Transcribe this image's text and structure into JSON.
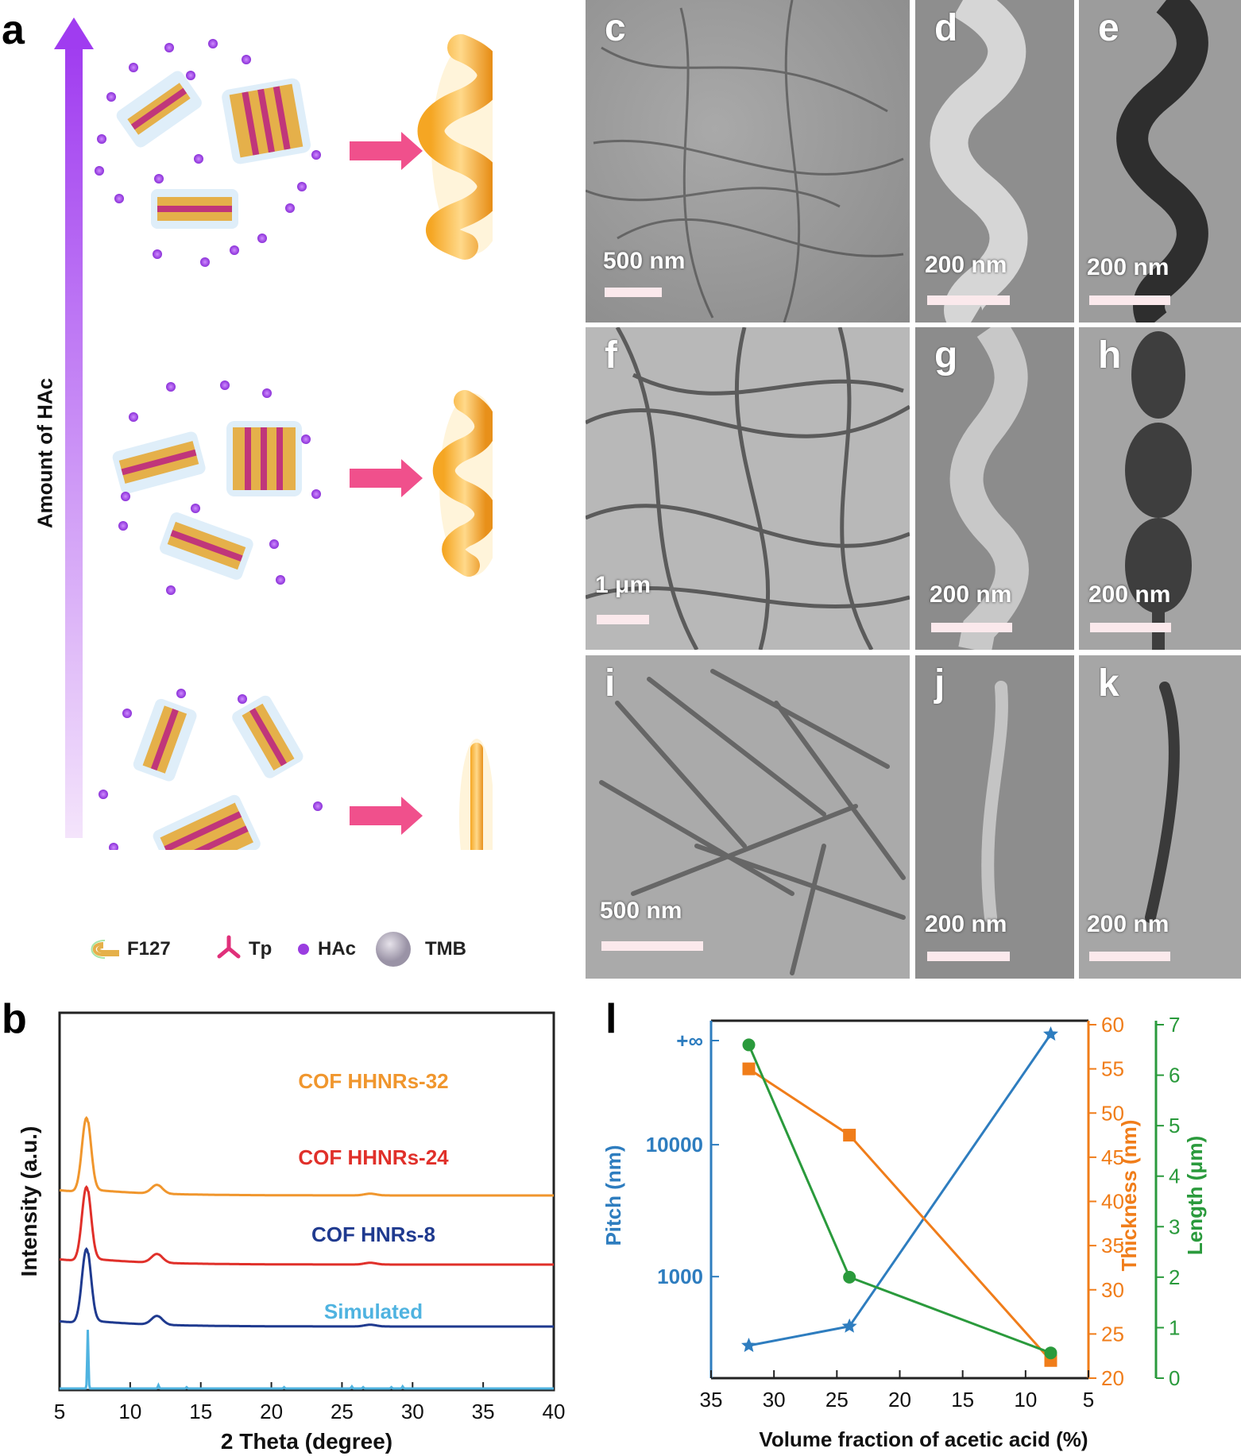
{
  "panel_a": {
    "letter": "a",
    "axis_label": "Amount of HAc",
    "legend": [
      {
        "label": "F127"
      },
      {
        "label": "Tp"
      },
      {
        "label": "HAc"
      },
      {
        "label": "TMB"
      }
    ]
  },
  "tem_panels": [
    {
      "letter": "c",
      "scale": "500 nm"
    },
    {
      "letter": "d",
      "scale": "200 nm"
    },
    {
      "letter": "e",
      "scale": "200 nm"
    },
    {
      "letter": "f",
      "scale": "1 μm"
    },
    {
      "letter": "g",
      "scale": "200 nm"
    },
    {
      "letter": "h",
      "scale": "200 nm"
    },
    {
      "letter": "i",
      "scale": "500 nm"
    },
    {
      "letter": "j",
      "scale": "200 nm"
    },
    {
      "letter": "k",
      "scale": "200 nm"
    }
  ],
  "colors": {
    "arrow_purple": "#a03cf0",
    "pink_arrow": "#f0508c",
    "orange": "#f0962d",
    "red": "#e0302a",
    "navy": "#1f3a8f",
    "sky": "#4fb3e0",
    "blue": "#2e7dbf",
    "orange2": "#f07d1a",
    "green": "#2a9a3c"
  },
  "chart_data": [
    {
      "panel": "b",
      "type": "line",
      "xlabel": "2 Theta (degree)",
      "ylabel": "Intensity (a.u.)",
      "xlim": [
        5,
        40
      ],
      "xticks": [
        5,
        10,
        15,
        20,
        25,
        30,
        35,
        40
      ],
      "series": [
        {
          "name": "COF HHNRs-32",
          "offset": 3,
          "peaks": [
            [
              6.9,
              0.85
            ],
            [
              11.9,
              0.1
            ],
            [
              27.0,
              0.02
            ]
          ]
        },
        {
          "name": "COF HHNRs-24",
          "offset": 2,
          "peaks": [
            [
              6.9,
              0.85
            ],
            [
              11.9,
              0.1
            ],
            [
              27.0,
              0.02
            ]
          ]
        },
        {
          "name": "COF  HNRs-8",
          "offset": 1,
          "peaks": [
            [
              6.9,
              0.85
            ],
            [
              11.9,
              0.1
            ],
            [
              27.0,
              0.02
            ]
          ]
        },
        {
          "name": "Simulated",
          "offset": 0,
          "peaks": [
            [
              7.0,
              0.9
            ],
            [
              12.0,
              0.05
            ],
            [
              14.0,
              0.02
            ],
            [
              20.9,
              0.02
            ],
            [
              25.7,
              0.03
            ],
            [
              26.5,
              0.02
            ],
            [
              28.5,
              0.02
            ],
            [
              29.3,
              0.03
            ]
          ]
        }
      ]
    },
    {
      "panel": "l",
      "type": "line",
      "xlabel": "Volume fraction of acetic acid (%)",
      "xlim": [
        35,
        5
      ],
      "xticks": [
        35,
        30,
        25,
        20,
        15,
        10,
        5
      ],
      "x": [
        32,
        24,
        8
      ],
      "axes": [
        {
          "name": "Pitch (nm)",
          "scale": "log",
          "ticks": [
            "1000",
            "10000",
            "+∞"
          ],
          "values": [
            300,
            420,
            60000
          ]
        },
        {
          "name": "Thickness (nm)",
          "ylim": [
            20,
            60
          ],
          "ticks": [
            20,
            25,
            30,
            35,
            40,
            45,
            50,
            55,
            60
          ],
          "values": [
            55,
            47.5,
            22
          ]
        },
        {
          "name": "Length (μm)",
          "ylim": [
            0,
            7
          ],
          "ticks": [
            0,
            1,
            2,
            3,
            4,
            5,
            6,
            7
          ],
          "values": [
            6.6,
            2.0,
            0.5
          ]
        }
      ]
    }
  ]
}
